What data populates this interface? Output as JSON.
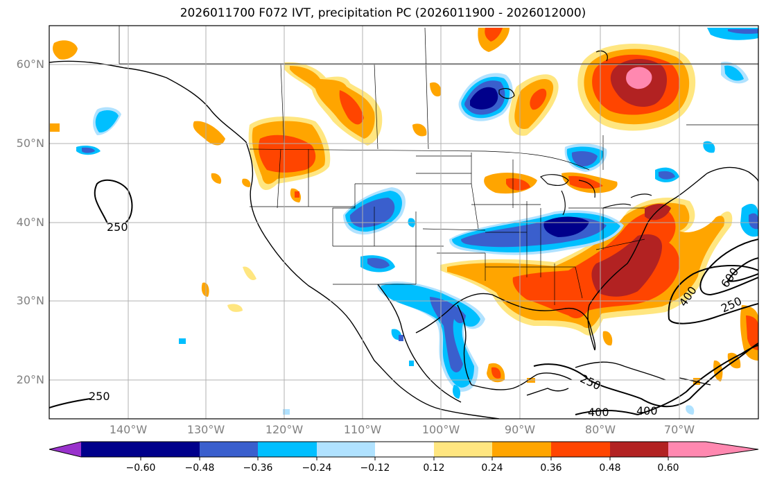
{
  "title": "2026011700 F072 IVT, precipitation PC (2026011900 - 2026012000)",
  "lat_labels": [
    "60°N",
    "50°N",
    "40°N",
    "30°N",
    "20°N"
  ],
  "lon_labels": [
    "140°W",
    "130°W",
    "120°W",
    "110°W",
    "100°W",
    "90°W",
    "80°W",
    "70°W"
  ],
  "colorbar": {
    "ticks": [
      "−0.60",
      "−0.48",
      "−0.36",
      "−0.24",
      "−0.12",
      "0.12",
      "0.24",
      "0.36",
      "0.48",
      "0.60"
    ],
    "colors": [
      "#9932cc",
      "#00008b",
      "#3a5fcd",
      "#00bfff",
      "#b0e2ff",
      "#ffffff",
      "#ffe680",
      "#ffa500",
      "#ff4500",
      "#b22222",
      "#ff88b0"
    ]
  },
  "ivt_contour_labels": [
    "250",
    "250",
    "400",
    "250",
    "400",
    "400",
    "250",
    "600"
  ],
  "shading_colors": {
    "light_yellow": "#ffe680",
    "orange": "#ffa500",
    "red_orange": "#ff4500",
    "dark_red": "#b22222",
    "pink": "#ff88b0",
    "light_blue": "#b0e2ff",
    "sky_blue": "#00bfff",
    "royal_blue": "#3a5fcd",
    "navy": "#00008b"
  }
}
